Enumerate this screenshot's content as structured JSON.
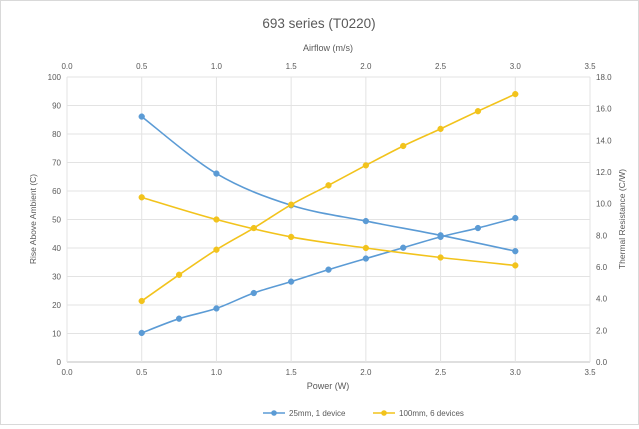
{
  "chart_data": {
    "type": "line",
    "title": "693 series (T0220)",
    "bottom_axis": {
      "label": "Power (W)",
      "range": [
        0.0,
        3.5
      ],
      "ticks": [
        "0.0",
        "0.5",
        "1.0",
        "1.5",
        "2.0",
        "2.5",
        "3.0",
        "3.5"
      ]
    },
    "top_axis": {
      "label": "Airflow (m/s)",
      "range": [
        0.0,
        3.5
      ],
      "ticks": [
        "0.0",
        "0.5",
        "1.0",
        "1.5",
        "2.0",
        "2.5",
        "3.0",
        "3.5"
      ]
    },
    "left_axis": {
      "label": "Rise Above Ambient (C)",
      "range": [
        0,
        100
      ],
      "ticks": [
        "0",
        "10",
        "20",
        "30",
        "40",
        "50",
        "60",
        "70",
        "80",
        "90",
        "100"
      ]
    },
    "right_axis": {
      "label": "Thermal Resistance (C/W)",
      "range": [
        0.0,
        18.0
      ],
      "ticks": [
        "0.0",
        "2.0",
        "4.0",
        "6.0",
        "8.0",
        "10.0",
        "12.0",
        "14.0",
        "16.0",
        "18.0"
      ]
    },
    "grid": true,
    "legend_position": "bottom",
    "series": [
      {
        "name": "25mm, 1 device",
        "color": "#5b9bd5",
        "rise": {
          "x": [
            0.5,
            0.75,
            1.0,
            1.25,
            1.5,
            1.75,
            2.0,
            2.25,
            2.5,
            2.75,
            3.0
          ],
          "y": [
            10.2,
            15.2,
            18.8,
            24.2,
            28.2,
            32.4,
            36.3,
            40.1,
            43.9,
            47.0,
            50.5
          ]
        },
        "thermal_resistance": {
          "x": [
            0.5,
            1.0,
            1.5,
            2.0,
            2.5,
            3.0
          ],
          "y": [
            15.5,
            11.9,
            9.9,
            8.9,
            8.0,
            7.0
          ]
        }
      },
      {
        "name": "100mm, 6 devices",
        "color": "#f2c31c",
        "rise": {
          "x": [
            0.5,
            0.75,
            1.0,
            1.25,
            1.5,
            1.75,
            2.0,
            2.25,
            2.5,
            2.75,
            3.0
          ],
          "y": [
            21.4,
            30.6,
            39.4,
            47.0,
            55.2,
            62.0,
            69.0,
            75.8,
            81.8,
            88.0,
            94.0
          ]
        },
        "thermal_resistance": {
          "x": [
            0.5,
            1.0,
            1.5,
            2.0,
            2.5,
            3.0
          ],
          "y": [
            10.4,
            9.0,
            7.9,
            7.2,
            6.6,
            6.1
          ]
        }
      }
    ]
  }
}
